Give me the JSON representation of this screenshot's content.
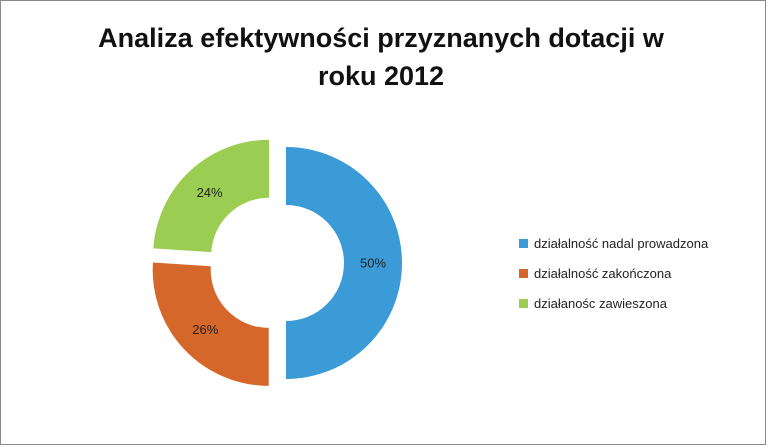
{
  "chart_data": {
    "type": "pie",
    "variant": "exploded-donut",
    "title": "Analiza efektywności przyznanych dotacji w roku 2012",
    "legend_position": "right",
    "series": [
      {
        "categories": [
          "działalność nadal prowadzona",
          "działalność zakończona",
          "działanośc zawieszona"
        ],
        "values": [
          50,
          26,
          24
        ],
        "labels": [
          "50%",
          "26%",
          "24%"
        ],
        "colors": [
          "#3a9bd6",
          "#d5672b",
          "#9acd52"
        ]
      }
    ]
  }
}
